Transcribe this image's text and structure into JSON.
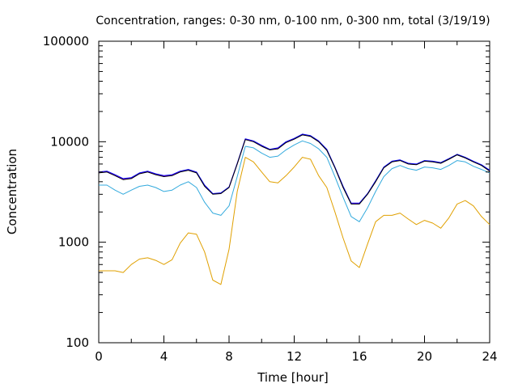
{
  "chart_data": {
    "type": "line",
    "title": "Concentration, ranges: 0-30 nm, 0-100 nm, 0-300 nm, total (3/19/19)",
    "xlabel": "Time [hour]",
    "ylabel": "Concentration",
    "xlim": [
      0,
      24
    ],
    "ylim": [
      100,
      100000
    ],
    "yscale": "log",
    "grid": false,
    "legend": "none",
    "x_ticks": [
      "0",
      "4",
      "8",
      "12",
      "16",
      "20",
      "24"
    ],
    "y_ticks": [
      "100",
      "1000",
      "10000",
      "100000"
    ],
    "x": [
      0,
      0.5,
      1,
      1.5,
      2,
      2.5,
      3,
      3.5,
      4,
      4.5,
      5,
      5.5,
      6,
      6.5,
      7,
      7.5,
      8,
      8.5,
      9,
      9.5,
      10,
      10.5,
      11,
      11.5,
      12,
      12.5,
      13,
      13.5,
      14,
      14.5,
      15,
      15.5,
      16,
      16.5,
      17,
      17.5,
      18,
      18.5,
      19,
      19.5,
      20,
      20.5,
      21,
      21.5,
      22,
      22.5,
      23,
      23.5,
      24
    ],
    "series": [
      {
        "color": "#000000",
        "values": [
          4900,
          5000,
          4600,
          4200,
          4300,
          4800,
          5000,
          4700,
          4500,
          4600,
          5000,
          5200,
          4900,
          3600,
          3000,
          3050,
          3500,
          6000,
          10500,
          10000,
          9000,
          8300,
          8500,
          9800,
          10600,
          11700,
          11300,
          10000,
          8200,
          5500,
          3500,
          2400,
          2400,
          3000,
          4000,
          5500,
          6300,
          6500,
          6000,
          5900,
          6400,
          6300,
          6100,
          6700,
          7400,
          6900,
          6300,
          5800,
          5100
        ]
      },
      {
        "color": "#0000ff",
        "values": [
          5000,
          5100,
          4700,
          4300,
          4400,
          4900,
          5100,
          4800,
          4600,
          4700,
          5100,
          5300,
          5000,
          3700,
          3050,
          3100,
          3550,
          6100,
          10700,
          10200,
          9200,
          8400,
          8700,
          10000,
          10800,
          11900,
          11500,
          10200,
          8400,
          5600,
          3600,
          2450,
          2450,
          3050,
          4100,
          5600,
          6400,
          6600,
          6100,
          6000,
          6500,
          6400,
          6200,
          6800,
          7500,
          7000,
          6400,
          5900,
          5200
        ]
      },
      {
        "color": "#ff00ff",
        "values": [
          5000,
          5050,
          4650,
          4250,
          4350,
          4850,
          5050,
          4750,
          4550,
          4650,
          5050,
          5250,
          4950,
          3650,
          3025,
          3075,
          3525,
          6050,
          10600,
          10100,
          9100,
          8350,
          8600,
          9900,
          10700,
          11800,
          11400,
          10100,
          8300,
          5550,
          3550,
          2425,
          2425,
          3025,
          4050,
          5550,
          6350,
          6550,
          6050,
          5950,
          6450,
          6350,
          6150,
          6750,
          7450,
          6950,
          6350,
          5850,
          5150
        ]
      },
      {
        "color": "#33aadd",
        "values": [
          3700,
          3700,
          3300,
          3000,
          3300,
          3600,
          3700,
          3500,
          3200,
          3300,
          3700,
          4000,
          3500,
          2500,
          1950,
          1850,
          2300,
          4500,
          9000,
          8700,
          7700,
          7000,
          7200,
          8300,
          9300,
          10200,
          9600,
          8500,
          7000,
          4500,
          2800,
          1800,
          1600,
          2200,
          3200,
          4500,
          5400,
          5800,
          5400,
          5200,
          5600,
          5500,
          5300,
          5800,
          6500,
          6300,
          5700,
          5300,
          4900
        ]
      },
      {
        "color": "#e0a000",
        "values": [
          520,
          520,
          520,
          500,
          600,
          680,
          700,
          660,
          600,
          670,
          980,
          1240,
          1200,
          800,
          420,
          380,
          850,
          3200,
          7000,
          6300,
          5000,
          4000,
          3900,
          4600,
          5600,
          7000,
          6700,
          4600,
          3500,
          2000,
          1100,
          650,
          560,
          960,
          1600,
          1850,
          1850,
          1950,
          1700,
          1500,
          1650,
          1550,
          1380,
          1750,
          2400,
          2600,
          2300,
          1800,
          1500
        ]
      }
    ]
  }
}
